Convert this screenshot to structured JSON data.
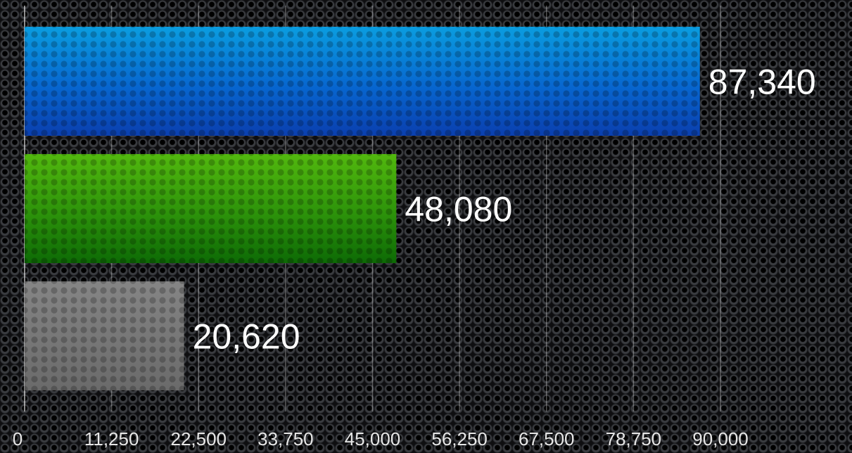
{
  "chart_data": {
    "type": "bar",
    "orientation": "horizontal",
    "title": "",
    "xlabel": "",
    "ylabel": "",
    "categories": [
      "",
      "",
      ""
    ],
    "values": [
      87340,
      48080,
      20620
    ],
    "value_labels": [
      "87,340",
      "48,080",
      "20,620"
    ],
    "bar_colors": [
      "#0a5fd0",
      "#2e9e0a",
      "#8a8a8a"
    ],
    "xlim": [
      0,
      90000
    ],
    "xticks": [
      0,
      11250,
      22500,
      33750,
      45000,
      56250,
      67500,
      78750,
      90000
    ],
    "xtick_labels": [
      "0",
      "11,250",
      "22,500",
      "33,750",
      "45,000",
      "56,250",
      "67,500",
      "78,750",
      "90,000"
    ],
    "grid": true,
    "legend": "none",
    "background": "dark perforated metal"
  }
}
